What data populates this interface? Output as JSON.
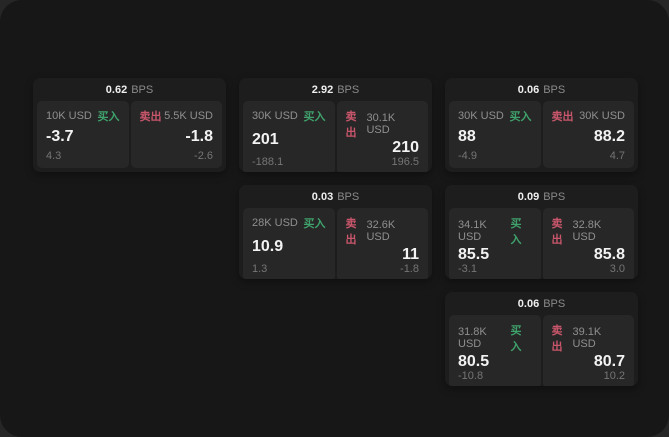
{
  "labels": {
    "bps": "BPS",
    "buy": "买入",
    "sell": "卖出"
  },
  "colors": {
    "buy": "#3fa26c",
    "sell": "#c9566b"
  },
  "cards": [
    {
      "bps": "0.62",
      "buy": {
        "size": "10K USD",
        "price": "-3.7",
        "delta": "4.3"
      },
      "sell": {
        "size": "5.5K USD",
        "price": "-1.8",
        "delta": "-2.6"
      }
    },
    {
      "bps": "2.92",
      "buy": {
        "size": "30K USD",
        "price": "201",
        "delta": "-188.1"
      },
      "sell": {
        "size": "30.1K USD",
        "price": "210",
        "delta": "196.5"
      }
    },
    {
      "bps": "0.06",
      "buy": {
        "size": "30K USD",
        "price": "88",
        "delta": "-4.9"
      },
      "sell": {
        "size": "30K USD",
        "price": "88.2",
        "delta": "4.7"
      }
    },
    {
      "bps": "0.03",
      "buy": {
        "size": "28K USD",
        "price": "10.9",
        "delta": "1.3"
      },
      "sell": {
        "size": "32.6K USD",
        "price": "11",
        "delta": "-1.8"
      }
    },
    {
      "bps": "0.09",
      "buy": {
        "size": "34.1K USD",
        "price": "85.5",
        "delta": "-3.1"
      },
      "sell": {
        "size": "32.8K USD",
        "price": "85.8",
        "delta": "3.0"
      }
    },
    {
      "bps": "0.06",
      "buy": {
        "size": "31.8K USD",
        "price": "80.5",
        "delta": "-10.8"
      },
      "sell": {
        "size": "39.1K USD",
        "price": "80.7",
        "delta": "10.2"
      }
    }
  ]
}
